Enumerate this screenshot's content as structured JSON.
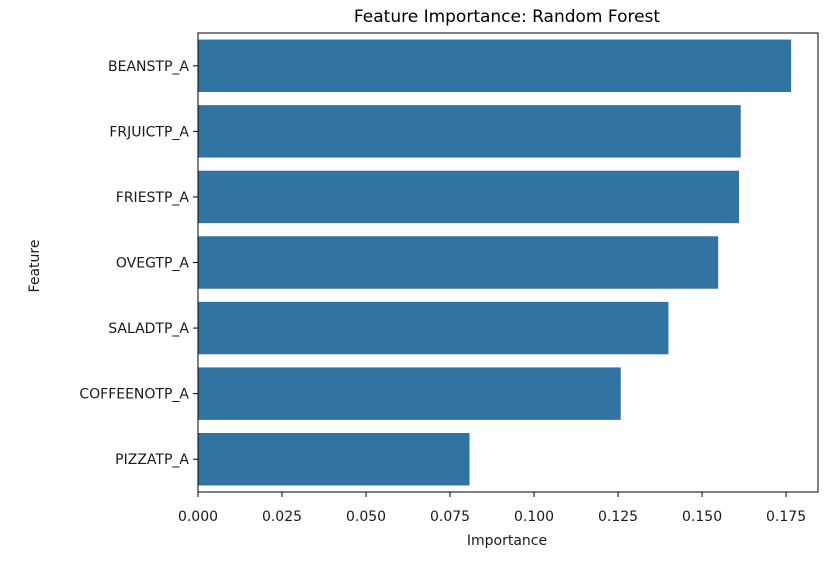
{
  "chart_data": {
    "type": "bar",
    "orientation": "horizontal",
    "title": "Feature Importance: Random Forest",
    "xlabel": "Importance",
    "ylabel": "Feature",
    "categories": [
      "BEANSTP_A",
      "FRJUICTP_A",
      "FRIESTP_A",
      "OVEGTP_A",
      "SALADTP_A",
      "COFFEENOTP_A",
      "PIZZATP_A"
    ],
    "values": [
      0.1765,
      0.1615,
      0.161,
      0.1548,
      0.14,
      0.1258,
      0.0808
    ],
    "xlim": [
      0,
      0.1845
    ],
    "xticks": [
      "0.000",
      "0.025",
      "0.050",
      "0.075",
      "0.100",
      "0.125",
      "0.150",
      "0.175"
    ],
    "xtick_values": [
      0,
      0.025,
      0.05,
      0.075,
      0.1,
      0.125,
      0.15,
      0.175
    ],
    "grid": false,
    "bar_color": "#3274a1"
  }
}
